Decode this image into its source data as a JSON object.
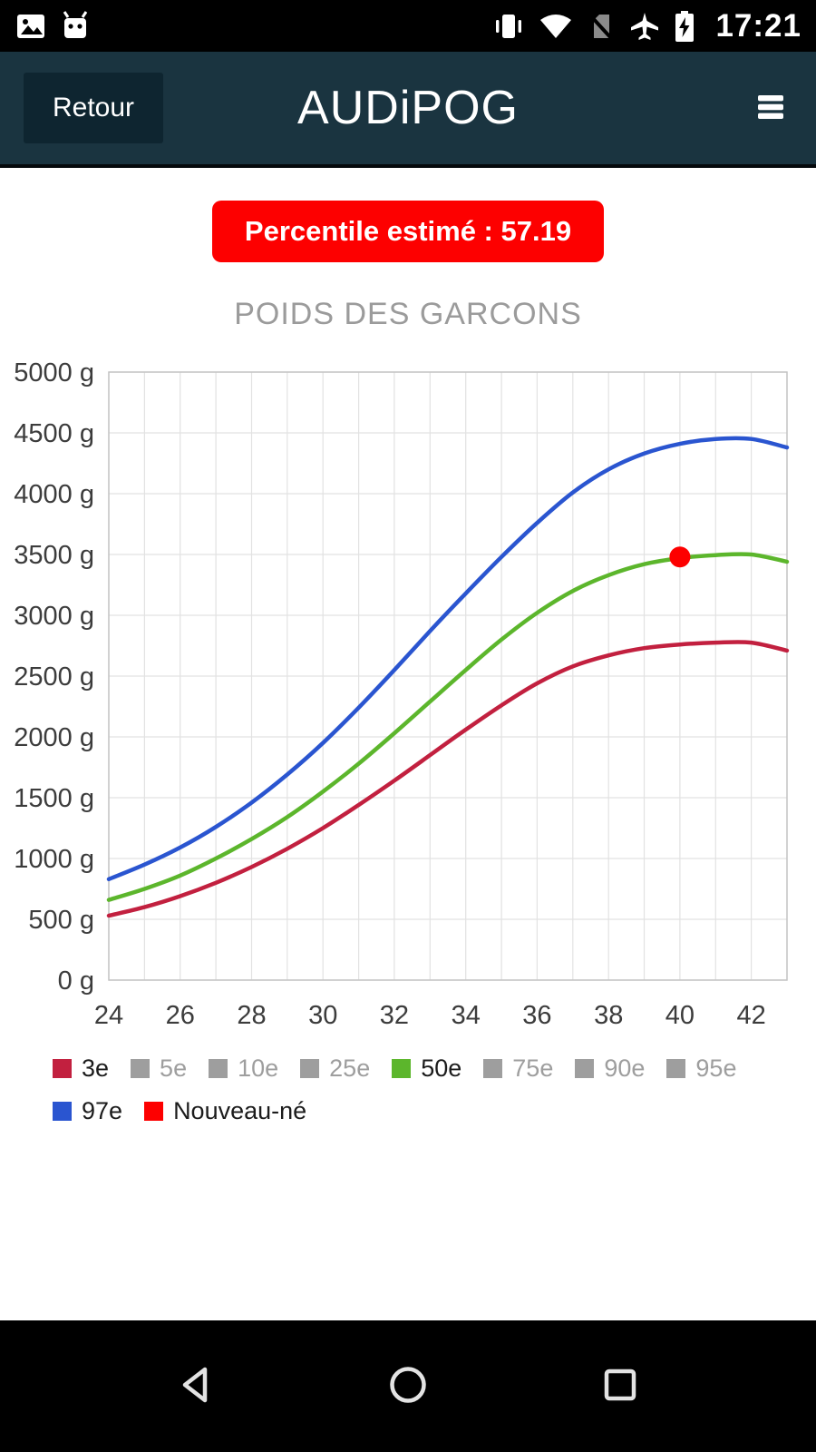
{
  "status_bar": {
    "time": "17:21",
    "icons_left": [
      "image-thumbnail",
      "app-notification"
    ],
    "icons_right": [
      "vibrate",
      "wifi",
      "no-sim",
      "airplane",
      "battery-charging"
    ]
  },
  "header": {
    "back_label": "Retour",
    "title": "AUDiPOG",
    "menu_icon": "hamburger"
  },
  "result_badge": {
    "label": "Percentile estimé : 57.19",
    "color": "#fd0000"
  },
  "chart_data": {
    "type": "line",
    "title": "POIDS DES GARCONS",
    "xlabel": "",
    "ylabel": "",
    "xlim": [
      24,
      43
    ],
    "ylim": [
      0,
      5000
    ],
    "y_tick_step": 500,
    "y_suffix": " g",
    "x_ticks": [
      24,
      26,
      28,
      30,
      32,
      34,
      36,
      38,
      40,
      42
    ],
    "x": [
      24,
      25,
      26,
      27,
      28,
      29,
      30,
      31,
      32,
      33,
      34,
      35,
      36,
      37,
      38,
      39,
      40,
      41,
      42,
      43
    ],
    "series": [
      {
        "name": "97e",
        "color": "#2a55d0",
        "values": [
          830,
          950,
          1090,
          1260,
          1460,
          1690,
          1950,
          2240,
          2550,
          2870,
          3180,
          3480,
          3760,
          4010,
          4200,
          4330,
          4410,
          4450,
          4450,
          4380
        ]
      },
      {
        "name": "50e",
        "color": "#5cb62c",
        "values": [
          660,
          750,
          860,
          1000,
          1160,
          1340,
          1550,
          1780,
          2030,
          2290,
          2550,
          2800,
          3020,
          3200,
          3330,
          3420,
          3470,
          3495,
          3500,
          3440
        ]
      },
      {
        "name": "3e",
        "color": "#c2203f",
        "values": [
          530,
          600,
          690,
          800,
          930,
          1080,
          1250,
          1440,
          1640,
          1850,
          2060,
          2260,
          2440,
          2580,
          2670,
          2730,
          2760,
          2775,
          2775,
          2710
        ]
      }
    ],
    "point": {
      "label": "Nouveau-né",
      "x": 40,
      "value": 3480,
      "color": "#fd0000"
    },
    "grid": true,
    "legend_position": "bottom",
    "legend": [
      {
        "label": "3e",
        "color": "#c2203f",
        "active": true
      },
      {
        "label": "5e",
        "color": "#9e9e9e",
        "active": false
      },
      {
        "label": "10e",
        "color": "#9e9e9e",
        "active": false
      },
      {
        "label": "25e",
        "color": "#9e9e9e",
        "active": false
      },
      {
        "label": "50e",
        "color": "#5cb62c",
        "active": true
      },
      {
        "label": "75e",
        "color": "#9e9e9e",
        "active": false
      },
      {
        "label": "90e",
        "color": "#9e9e9e",
        "active": false
      },
      {
        "label": "95e",
        "color": "#9e9e9e",
        "active": false
      },
      {
        "label": "97e",
        "color": "#2a55d0",
        "active": true
      },
      {
        "label": "Nouveau-né",
        "color": "#fd0000",
        "active": true
      }
    ]
  },
  "nav_bar": {
    "buttons": [
      "back",
      "home",
      "recents"
    ]
  }
}
